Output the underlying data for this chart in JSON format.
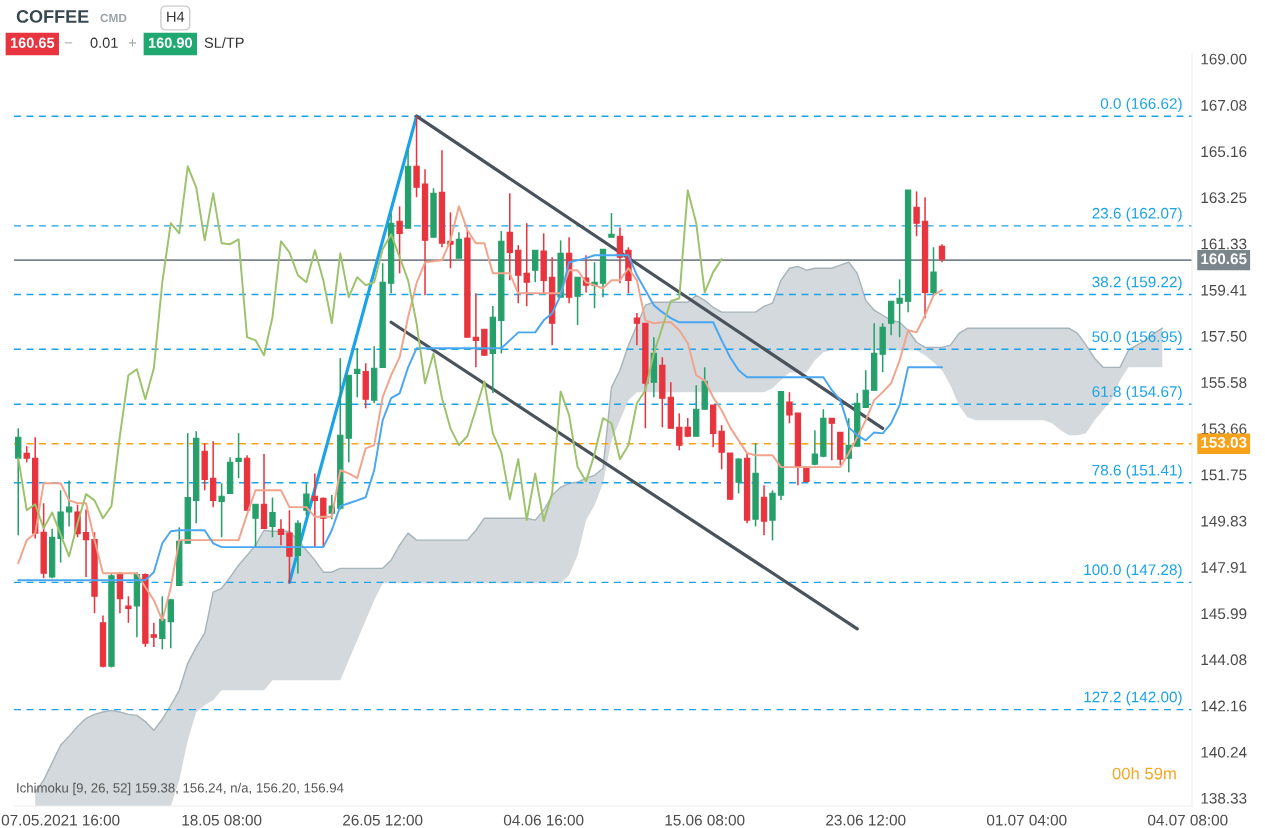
{
  "chart_data": {
    "type": "candlestick",
    "title": "COFFEE",
    "subtitle": "CMD",
    "categories": [
      null,
      null,
      null,
      null,
      null,
      "07.05.2021 16:00",
      null,
      null,
      null,
      null,
      null,
      null,
      null,
      null,
      null,
      null,
      null,
      null,
      null,
      null,
      null,
      null,
      null,
      null,
      "18.05 08:00",
      null,
      null,
      null,
      null,
      null,
      null,
      null,
      null,
      null,
      null,
      null,
      null,
      null,
      null,
      null,
      null,
      null,
      null,
      "26.05 12:00",
      null,
      null,
      null,
      null,
      null,
      null,
      null,
      null,
      null,
      null,
      null,
      null,
      null,
      null,
      null,
      null,
      null,
      null,
      "04.06 16:00",
      null,
      null,
      null,
      null,
      null,
      null,
      null,
      null,
      null,
      null,
      null,
      null,
      null,
      null,
      null,
      null,
      null,
      null,
      "15.06 08:00",
      null,
      null,
      null,
      null,
      null,
      null,
      null,
      null,
      null,
      null,
      null,
      null,
      null,
      null,
      null,
      null,
      null,
      null,
      "23.06 12:00",
      null,
      null,
      null,
      null,
      null,
      null,
      null,
      null,
      null,
      null,
      null,
      null,
      null,
      null,
      null,
      null,
      null,
      null,
      "01.07 04:00",
      null,
      null,
      null,
      null,
      null,
      null,
      null,
      null,
      null,
      null,
      null,
      null,
      null,
      null,
      null,
      null,
      null,
      null,
      "04.07 08:00"
    ],
    "ohlc": [
      [
        152.43,
        153.67,
        149.23,
        153.3
      ],
      [
        152.63,
        152.93,
        152.26,
        152.43
      ],
      [
        152.43,
        153.3,
        149.1,
        149.32
      ],
      [
        149.36,
        150.56,
        147.45,
        147.66
      ],
      [
        147.5,
        149.5,
        147.45,
        149.15
      ],
      [
        149.1,
        151.1,
        148.1,
        150.2
      ],
      [
        150.2,
        151.5,
        149.6,
        150.4
      ],
      [
        150.2,
        150.5,
        149.15,
        149.3
      ],
      [
        149.35,
        150.3,
        147.5,
        149.05
      ],
      [
        149.05,
        149.35,
        146.0,
        146.7
      ],
      [
        145.6,
        145.9,
        143.75,
        143.8
      ],
      [
        143.8,
        147.65,
        143.75,
        147.55
      ],
      [
        147.6,
        147.7,
        146.0,
        146.6
      ],
      [
        146.3,
        146.7,
        145.6,
        146.2
      ],
      [
        146.3,
        147.7,
        145.0,
        147.6
      ],
      [
        147.6,
        147.65,
        144.6,
        144.75
      ],
      [
        145.1,
        145.6,
        144.6,
        145.0
      ],
      [
        144.95,
        146.7,
        144.5,
        145.75
      ],
      [
        145.65,
        146.6,
        144.55,
        146.55
      ],
      [
        147.15,
        149.56,
        147.15,
        148.98
      ],
      [
        148.9,
        153.47,
        148.9,
        150.8
      ],
      [
        150.68,
        153.55,
        149.73,
        153.26
      ],
      [
        152.72,
        153.05,
        151.1,
        151.55
      ],
      [
        151.6,
        153.13,
        150.4,
        150.68
      ],
      [
        150.64,
        151.39,
        149.15,
        150.85
      ],
      [
        150.97,
        152.47,
        150.97,
        152.26
      ],
      [
        152.3,
        153.47,
        151.6,
        152.43
      ],
      [
        152.43,
        152.55,
        150.27,
        150.27
      ],
      [
        149.94,
        150.52,
        148.74,
        150.52
      ],
      [
        150.52,
        152.6,
        149.52,
        149.52
      ],
      [
        149.6,
        150.8,
        149.15,
        150.18
      ],
      [
        149.48,
        149.9,
        148.82,
        149.27
      ],
      [
        149.32,
        150.27,
        147.24,
        148.36
      ],
      [
        148.4,
        149.86,
        147.65,
        149.73
      ],
      [
        150.27,
        151.39,
        150.06,
        150.94
      ],
      [
        150.85,
        151.8,
        148.74,
        150.68
      ],
      [
        150.77,
        150.8,
        148.74,
        149.94
      ],
      [
        150.15,
        150.9,
        149.9,
        150.44
      ],
      [
        150.36,
        156.58,
        150.3,
        153.38
      ],
      [
        153.26,
        155.87,
        152.26,
        155.87
      ],
      [
        155.95,
        156.99,
        154.96,
        156.12
      ],
      [
        156.03,
        156.37,
        154.5,
        154.88
      ],
      [
        154.84,
        157.07,
        154.71,
        156.16
      ],
      [
        156.2,
        160.52,
        156.2,
        159.73
      ],
      [
        159.69,
        162.59,
        159.27,
        162.18
      ],
      [
        162.26,
        162.88,
        160.1,
        161.76
      ],
      [
        161.97,
        165.21,
        161.97,
        164.54
      ],
      [
        164.54,
        166.62,
        163.26,
        163.67
      ],
      [
        163.8,
        164.42,
        159.19,
        161.47
      ],
      [
        161.6,
        163.63,
        161.6,
        163.42
      ],
      [
        163.46,
        165.21,
        161.18,
        161.35
      ],
      [
        161.43,
        162.63,
        160.31,
        161.31
      ],
      [
        160.73,
        161.8,
        160.73,
        161.51
      ],
      [
        161.56,
        161.89,
        157.45,
        157.45
      ],
      [
        157.45,
        159.27,
        156.2,
        157.32
      ],
      [
        157.78,
        157.78,
        156.7,
        156.7
      ],
      [
        156.78,
        158.74,
        155.13,
        158.28
      ],
      [
        158.15,
        161.85,
        156.78,
        161.43
      ],
      [
        161.8,
        163.42,
        159.81,
        160.97
      ],
      [
        161.06,
        161.27,
        158.86,
        160.02
      ],
      [
        160.1,
        162.18,
        158.74,
        159.73
      ],
      [
        160.23,
        161.06,
        159.73,
        161.06
      ],
      [
        161.02,
        161.76,
        159.27,
        159.81
      ],
      [
        159.94,
        160.77,
        157.12,
        158.03
      ],
      [
        159.11,
        161.47,
        159.11,
        160.93
      ],
      [
        160.93,
        161.6,
        158.86,
        159.11
      ],
      [
        159.15,
        159.94,
        157.95,
        159.94
      ],
      [
        159.9,
        160.85,
        159.3,
        159.61
      ],
      [
        159.61,
        160.56,
        158.65,
        159.73
      ],
      [
        159.69,
        161.1,
        159.11,
        161.1
      ],
      [
        161.6,
        162.6,
        161.6,
        161.72
      ],
      [
        161.64,
        162.0,
        159.69,
        160.77
      ],
      [
        161.06,
        161.18,
        159.27,
        159.81
      ],
      [
        158.24,
        158.45,
        157.12,
        158.03
      ],
      [
        158.03,
        158.03,
        153.67,
        155.54
      ],
      [
        155.58,
        157.45,
        154.96,
        156.78
      ],
      [
        156.28,
        156.62,
        153.71,
        154.92
      ],
      [
        154.96,
        155.58,
        153.67,
        153.67
      ],
      [
        153.71,
        154.29,
        152.76,
        152.97
      ],
      [
        153.71,
        154.1,
        153.3,
        153.34
      ],
      [
        153.34,
        155.46,
        153.34,
        154.46
      ],
      [
        154.46,
        156.2,
        154.46,
        155.62
      ],
      [
        154.63,
        154.63,
        152.88,
        153.46
      ],
      [
        153.55,
        153.8,
        151.97,
        152.68
      ],
      [
        152.64,
        152.64,
        150.7,
        150.73
      ],
      [
        151.43,
        152.43,
        150.97,
        152.39
      ],
      [
        152.43,
        152.6,
        149.73,
        149.86
      ],
      [
        149.9,
        153.05,
        149.6,
        151.8
      ],
      [
        150.81,
        151.31,
        149.23,
        149.82
      ],
      [
        149.86,
        151.1,
        149.02,
        150.97
      ],
      [
        150.9,
        155.2,
        150.7,
        155.2
      ],
      [
        154.76,
        155.17,
        153.88,
        154.22
      ],
      [
        154.3,
        154.3,
        151.31,
        152.06
      ],
      [
        152.06,
        152.06,
        151.43,
        151.47
      ],
      [
        152.18,
        153.59,
        152.14,
        152.6
      ],
      [
        152.51,
        154.46,
        152.47,
        154.09
      ],
      [
        154.09,
        154.09,
        152.35,
        153.88
      ],
      [
        153.5,
        153.5,
        152.14,
        152.39
      ],
      [
        152.43,
        154.09,
        151.85,
        152.97
      ],
      [
        152.93,
        155.13,
        152.93,
        154.71
      ],
      [
        154.54,
        156.08,
        154.54,
        155.25
      ],
      [
        155.25,
        158.03,
        155.25,
        156.78
      ],
      [
        156.74,
        158.03,
        156.0,
        157.86
      ],
      [
        158.03,
        158.94,
        157.53,
        158.94
      ],
      [
        158.86,
        159.85,
        157.45,
        159.06
      ],
      [
        158.94,
        163.55,
        158.49,
        163.55
      ],
      [
        162.84,
        163.5,
        161.64,
        162.18
      ],
      [
        162.26,
        163.26,
        158.24,
        159.31
      ],
      [
        159.31,
        161.18,
        159.15,
        160.15
      ],
      [
        161.22,
        161.31,
        160.56,
        160.69
      ],
      null,
      null,
      null,
      null,
      null,
      null,
      null,
      null,
      null,
      null,
      null,
      null,
      null,
      null,
      null,
      null,
      null,
      null,
      null,
      null,
      null,
      null,
      null,
      null,
      null,
      null,
      null,
      null,
      null
    ],
    "colors": [
      "#26a06b",
      "#e8343e",
      "#e8343e",
      "#e8343e",
      "#26a06b",
      "#26a06b",
      "#26a06b",
      "#e8343e",
      "#e8343e",
      "#e8343e",
      "#e8343e",
      "#26a06b",
      "#e8343e",
      "#e8343e",
      "#26a06b",
      "#e8343e",
      "#e8343e",
      "#26a06b",
      "#26a06b",
      "#26a06b",
      "#26a06b",
      "#26a06b",
      "#e8343e",
      "#e8343e",
      "#26a06b",
      "#26a06b",
      "#26a06b",
      "#e8343e",
      "#26a06b",
      "#e8343e",
      "#26a06b",
      "#e8343e",
      "#e8343e",
      "#26a06b",
      "#26a06b",
      "#e8343e",
      "#e8343e",
      "#26a06b",
      "#26a06b",
      "#26a06b",
      "#26a06b",
      "#e8343e",
      "#26a06b",
      "#26a06b",
      "#26a06b",
      "#e8343e",
      "#26a06b",
      "#e8343e",
      "#e8343e",
      "#26a06b",
      "#e8343e",
      "#e8343e",
      "#26a06b",
      "#e8343e",
      "#e8343e",
      "#e8343e",
      "#26a06b",
      "#26a06b",
      "#e8343e",
      "#e8343e",
      "#e8343e",
      "#26a06b",
      "#e8343e",
      "#e8343e",
      "#26a06b",
      "#e8343e",
      "#26a06b",
      "#e8343e",
      "#26a06b",
      "#26a06b",
      "#26a06b",
      "#e8343e",
      "#e8343e",
      "#e8343e",
      "#e8343e",
      "#26a06b",
      "#e8343e",
      "#e8343e",
      "#e8343e",
      "#e8343e",
      "#26a06b",
      "#26a06b",
      "#e8343e",
      "#e8343e",
      "#e8343e",
      "#26a06b",
      "#e8343e",
      "#26a06b",
      "#e8343e",
      "#26a06b",
      "#26a06b",
      "#e8343e",
      "#e8343e",
      "#e8343e",
      "#26a06b",
      "#26a06b",
      "#e8343e",
      "#e8343e",
      "#26a06b",
      "#26a06b",
      "#26a06b",
      "#26a06b",
      "#26a06b",
      "#26a06b",
      "#26a06b",
      "#26a06b",
      "#e8343e",
      "#e8343e",
      "#26a06b",
      "#e8343e",
      null,
      null,
      null,
      null,
      null,
      null,
      null,
      null,
      null,
      null,
      null,
      null,
      null,
      null,
      null,
      null,
      null,
      null,
      null,
      null,
      null,
      null,
      null,
      null,
      null,
      null,
      null,
      null,
      null
    ],
    "series": [
      {
        "type": "line",
        "color": "#a7b3ba",
        "values": [
          null,
          null,
          138.57,
          139.07,
          139.8,
          140.52,
          140.9,
          141.3,
          141.64,
          141.8,
          141.9,
          141.97,
          141.9,
          141.8,
          141.76,
          141.5,
          141.14,
          141.6,
          142.18,
          142.8,
          143.92,
          144.59,
          145.17,
          146.87,
          147.03,
          147.49,
          147.99,
          148.4,
          148.82,
          149.44,
          149.4,
          149.4,
          149.4,
          149.03,
          148.61,
          148.2,
          147.7,
          147.7,
          147.86,
          147.86,
          147.86,
          147.86,
          147.86,
          147.86,
          148.2,
          148.82,
          149.32,
          149.03,
          149.03,
          149.03,
          149.03,
          149.03,
          149.03,
          149.03,
          149.44,
          149.94,
          149.94,
          149.94,
          149.94,
          149.94,
          149.94,
          149.86,
          150.27,
          150.89,
          151.22,
          151.39,
          151.43,
          151.6,
          151.72,
          152.01,
          155.37,
          156.08,
          157.12,
          157.95,
          158.78,
          158.9,
          158.9,
          158.9,
          158.9,
          158.9,
          159.19,
          158.98,
          158.69,
          158.49,
          158.49,
          158.49,
          158.49,
          158.49,
          158.73,
          158.86,
          159.81,
          160.31,
          160.39,
          160.23,
          160.31,
          160.31,
          160.31,
          160.44,
          160.56,
          160.1,
          158.98,
          158.57,
          158.36,
          158.15,
          158.07,
          157.74,
          157.24,
          157.03,
          157.03,
          157.03,
          157.12,
          157.61,
          157.82,
          157.82,
          157.82,
          157.82,
          157.82,
          157.82,
          157.82,
          157.82,
          157.82,
          157.82,
          157.82,
          157.82,
          157.82,
          157.61,
          157.12,
          156.58,
          156.2,
          156.2,
          156.2,
          156.91,
          157.12,
          157.32,
          157.61,
          157.82,
          null,
          null,
          null
        ],
        "upper": [
          null,
          null,
          138.57,
          139.07,
          139.8,
          140.52,
          140.9,
          141.3,
          141.64,
          141.8,
          141.9,
          141.97,
          141.9,
          141.8,
          141.76,
          141.5,
          141.14,
          141.6,
          142.18,
          142.8,
          143.92,
          144.59,
          145.17,
          146.87,
          147.03,
          147.49,
          147.99,
          148.4,
          148.82,
          149.44,
          149.4,
          149.4,
          149.4,
          149.03,
          148.61,
          148.2,
          147.7,
          147.7,
          147.86,
          147.86,
          147.86,
          147.86,
          147.86,
          147.86,
          148.2,
          148.82,
          149.32,
          149.03,
          149.03,
          149.03,
          149.03,
          149.03,
          149.03,
          149.03,
          149.44,
          149.94,
          149.94,
          149.94,
          149.94,
          149.94,
          149.94,
          149.86,
          150.27,
          150.89,
          151.22,
          151.39,
          151.43,
          151.6,
          151.72,
          152.01,
          155.37,
          156.08,
          157.12,
          157.95,
          158.78,
          158.9,
          158.9,
          158.9,
          158.9,
          158.9,
          159.19,
          158.98,
          158.69,
          158.49,
          158.49,
          158.49,
          158.49,
          158.49,
          158.73,
          158.86,
          159.81,
          160.31,
          160.39,
          160.23,
          160.31,
          160.31,
          160.31,
          160.44,
          160.56,
          160.1,
          158.98,
          158.57,
          158.36,
          158.15,
          158.07,
          157.74,
          157.24,
          157.03,
          157.03,
          157.03,
          157.12,
          157.61,
          157.82,
          157.82,
          157.82,
          157.82,
          157.82,
          157.82,
          157.82,
          157.82,
          157.82,
          157.82,
          157.82,
          157.82,
          157.82,
          157.61,
          157.12,
          156.58,
          156.2,
          156.2,
          156.2,
          156.91,
          157.12,
          157.32,
          157.61,
          157.82,
          null,
          null,
          null
        ],
        "lower": [
          null,
          null,
          138.0,
          138.0,
          138.0,
          138.0,
          138.0,
          138.0,
          138.0,
          138.0,
          138.0,
          138.0,
          138.0,
          138.0,
          138.0,
          138.0,
          138.0,
          138.0,
          138.0,
          139.07,
          140.73,
          141.89,
          142.18,
          142.39,
          142.8,
          142.8,
          142.8,
          142.8,
          142.8,
          142.8,
          143.22,
          143.22,
          143.22,
          143.22,
          143.22,
          143.22,
          143.22,
          143.22,
          143.22,
          144.05,
          144.88,
          145.71,
          146.54,
          147.24,
          147.24,
          147.24,
          147.24,
          147.24,
          147.24,
          147.24,
          147.24,
          147.24,
          147.24,
          147.24,
          147.24,
          147.24,
          147.24,
          147.24,
          147.24,
          147.24,
          147.24,
          147.24,
          147.24,
          147.24,
          147.24,
          147.57,
          148.4,
          149.86,
          150.48,
          151.39,
          153.17,
          154.0,
          154.83,
          155.17,
          155.17,
          155.17,
          155.17,
          155.17,
          155.17,
          155.17,
          155.17,
          155.17,
          155.17,
          155.17,
          155.17,
          155.17,
          155.17,
          155.17,
          155.17,
          155.33,
          155.66,
          155.99,
          155.99,
          155.99,
          156.49,
          156.83,
          156.91,
          156.91,
          156.91,
          156.91,
          156.91,
          156.91,
          156.91,
          156.91,
          156.91,
          156.91,
          156.91,
          156.7,
          156.41,
          156.08,
          155.45,
          154.62,
          154.13,
          154.0,
          154.0,
          154.0,
          154.0,
          154.0,
          154.0,
          154.0,
          154.0,
          154.0,
          153.88,
          153.59,
          153.38,
          153.38,
          153.47,
          154.0,
          154.42,
          154.83,
          155.66,
          156.2,
          156.2,
          156.2,
          156.2,
          156.2,
          null,
          null,
          null
        ]
      },
      {
        "type": "line",
        "color": "#f2a38c",
        "values": [
          148.07,
          149.03,
          149.32,
          151.39,
          151.39,
          151.39,
          150.68,
          150.56,
          150.56,
          149.03,
          147.66,
          147.66,
          147.66,
          147.66,
          147.66,
          147.08,
          146.54,
          145.7,
          147.08,
          149.03,
          149.03,
          149.03,
          149.03,
          149.03,
          149.03,
          149.03,
          149.03,
          150.1,
          151.1,
          151.1,
          151.1,
          151.1,
          150.4,
          150.4,
          150.4,
          150.0,
          150.0,
          150.0,
          151.93,
          151.8,
          151.6,
          152.84,
          152.97,
          154.96,
          155.87,
          156.62,
          158.28,
          159.69,
          160.56,
          160.6,
          160.64,
          161.47,
          162.88,
          161.89,
          161.35,
          161.35,
          160.1,
          160.1,
          160.1,
          159.27,
          159.27,
          159.27,
          159.27,
          159.27,
          159.27,
          160.23,
          160.23,
          159.73,
          159.61,
          159.48,
          159.81,
          159.81,
          160.31,
          159.81,
          158.15,
          158.03,
          158.07,
          158.07,
          157.74,
          157.2,
          155.87,
          155.66,
          154.96,
          154.42,
          153.71,
          153.17,
          152.64,
          152.55,
          152.55,
          152.55,
          152.06,
          152.06,
          152.06,
          152.06,
          152.06,
          152.06,
          152.06,
          152.06,
          152.64,
          153.3,
          154.0,
          154.84,
          155.17,
          155.54,
          156.49,
          157.74,
          157.65,
          158.36,
          159.19,
          159.4,
          null,
          null,
          null,
          null,
          null,
          null,
          null,
          null,
          null,
          null,
          null,
          null,
          null,
          null,
          null,
          null,
          null,
          null,
          null,
          null,
          null,
          null,
          null,
          null,
          null,
          null,
          null,
          null,
          null
        ]
      },
      {
        "type": "line",
        "color": "#4aa6f2",
        "values": [
          147.37,
          147.37,
          147.37,
          147.37,
          147.37,
          147.37,
          147.37,
          147.37,
          147.37,
          147.37,
          147.37,
          147.37,
          147.37,
          147.37,
          147.37,
          147.37,
          147.7,
          148.9,
          149.4,
          149.44,
          149.44,
          149.44,
          149.44,
          148.9,
          148.74,
          148.74,
          148.74,
          148.74,
          148.74,
          148.74,
          148.74,
          148.74,
          148.74,
          148.74,
          148.74,
          148.74,
          148.74,
          149.44,
          150.44,
          150.56,
          150.68,
          150.81,
          151.93,
          154.0,
          154.92,
          155.12,
          156.2,
          156.99,
          156.99,
          156.99,
          156.99,
          156.99,
          156.99,
          156.99,
          156.99,
          156.99,
          156.99,
          156.99,
          157.32,
          157.65,
          157.65,
          157.65,
          158.15,
          158.44,
          159.19,
          160.56,
          160.64,
          160.73,
          160.85,
          160.85,
          160.85,
          160.85,
          160.85,
          160.02,
          159.4,
          158.78,
          158.49,
          158.24,
          158.07,
          158.07,
          158.07,
          158.07,
          158.07,
          157.32,
          156.62,
          156.08,
          155.79,
          155.79,
          155.79,
          155.79,
          155.79,
          155.79,
          155.79,
          155.79,
          155.79,
          155.79,
          155.25,
          154.84,
          153.71,
          153.38,
          153.17,
          153.5,
          153.46,
          153.88,
          154.63,
          156.2,
          156.2,
          156.2,
          156.2,
          156.2,
          null,
          null,
          null,
          null,
          null,
          null,
          null,
          null,
          null,
          null,
          null,
          null,
          null,
          null,
          null,
          null,
          null,
          null,
          null,
          null,
          null,
          null,
          null,
          null,
          null,
          null,
          null,
          null,
          null
        ]
      },
      {
        "type": "line",
        "color": "#9cc26c",
        "values": [
          152.43,
          150.27,
          150.52,
          149.52,
          150.18,
          149.27,
          148.36,
          149.73,
          150.94,
          150.68,
          149.94,
          150.44,
          153.38,
          155.87,
          156.12,
          154.88,
          156.16,
          159.73,
          162.18,
          161.76,
          164.54,
          163.67,
          161.47,
          163.42,
          161.35,
          161.31,
          161.51,
          157.45,
          157.32,
          156.7,
          158.28,
          161.43,
          160.97,
          160.02,
          159.73,
          161.06,
          159.81,
          158.03,
          160.93,
          159.11,
          159.94,
          159.61,
          159.73,
          161.1,
          161.72,
          160.77,
          159.81,
          158.03,
          155.54,
          156.78,
          154.92,
          153.67,
          152.97,
          153.34,
          154.46,
          155.62,
          153.46,
          152.68,
          150.73,
          152.39,
          149.86,
          151.8,
          149.82,
          150.97,
          155.2,
          154.22,
          152.06,
          151.47,
          152.6,
          154.09,
          153.88,
          152.39,
          152.97,
          154.71,
          155.25,
          156.78,
          157.86,
          158.94,
          159.06,
          163.55,
          162.18,
          159.31,
          160.15,
          160.69,
          null,
          null,
          null,
          null,
          null,
          null,
          null,
          null,
          null,
          null,
          null,
          null,
          null,
          null,
          null,
          null,
          null,
          null,
          null,
          null,
          null,
          null,
          null,
          null,
          null,
          null,
          null,
          null,
          null,
          null,
          null,
          null,
          null,
          null,
          null,
          null,
          null,
          null,
          null,
          null,
          null,
          null,
          null,
          null,
          null,
          null,
          null,
          null,
          null,
          null,
          null,
          null,
          null,
          null,
          null
        ]
      },
      {
        "type": "line",
        "color": "#1aa3e8",
        "values": [
          null,
          null,
          null,
          null,
          null,
          null,
          null,
          null,
          null,
          null,
          null,
          null,
          null,
          null,
          null,
          null,
          null,
          null,
          null,
          null,
          null,
          null,
          null,
          null,
          null,
          null,
          null,
          null,
          null,
          null,
          null,
          null,
          147.28,
          null,
          null,
          null,
          null,
          null,
          null,
          null,
          null,
          null,
          null,
          null,
          null,
          null,
          null,
          166.62,
          null,
          null,
          null,
          null,
          null,
          null,
          null,
          null,
          null,
          null,
          null,
          null,
          null,
          null,
          null,
          null,
          null,
          null,
          null,
          null,
          null,
          null,
          null,
          null,
          null,
          null,
          null,
          null,
          null,
          null,
          null,
          null,
          null,
          null,
          null,
          null,
          null,
          null,
          null,
          null,
          null,
          null,
          null,
          null,
          null,
          null,
          null,
          null,
          null,
          null,
          null,
          null,
          null,
          null,
          null,
          null,
          null,
          null,
          null,
          null,
          null,
          null,
          null,
          null,
          null,
          null,
          null,
          null,
          null,
          null,
          null,
          null,
          null,
          null,
          null,
          null,
          null,
          null,
          null,
          null,
          null,
          null,
          null,
          null,
          null,
          null,
          null,
          null,
          null,
          null,
          null
        ]
      },
      {
        "type": "line",
        "color": "#4a535c",
        "values": [
          null,
          null,
          null,
          null,
          null,
          null,
          null,
          null,
          null,
          null,
          null,
          null,
          null,
          null,
          null,
          null,
          null,
          null,
          null,
          null,
          null,
          null,
          null,
          null,
          null,
          null,
          null,
          null,
          null,
          null,
          null,
          null,
          null,
          null,
          null,
          null,
          null,
          null,
          null,
          null,
          null,
          null,
          null,
          null,
          null,
          null,
          null,
          166.62,
          null,
          null,
          null,
          null,
          null,
          null,
          null,
          null,
          null,
          null,
          null,
          null,
          null,
          null,
          null,
          null,
          null,
          null,
          null,
          null,
          null,
          null,
          null,
          null,
          null,
          null,
          null,
          null,
          null,
          null,
          null,
          null,
          null,
          null,
          null,
          null,
          null,
          null,
          null,
          null,
          null,
          null,
          null,
          null,
          null,
          null,
          null,
          null,
          null,
          null,
          null,
          null,
          null,
          null,
          153.67,
          null,
          null,
          null,
          null,
          null,
          null,
          null,
          null,
          null,
          null,
          null,
          null,
          null,
          null,
          null,
          null,
          null,
          null,
          null,
          null,
          null,
          null,
          null,
          null,
          null,
          null,
          null,
          null,
          null,
          null,
          null,
          null,
          null,
          null,
          null,
          null
        ]
      },
      {
        "type": "line",
        "color": "#4a535c",
        "values": [
          null,
          null,
          null,
          null,
          null,
          null,
          null,
          null,
          null,
          null,
          null,
          null,
          null,
          null,
          null,
          null,
          null,
          null,
          null,
          null,
          null,
          null,
          null,
          null,
          null,
          null,
          null,
          null,
          null,
          null,
          null,
          null,
          null,
          null,
          null,
          null,
          null,
          null,
          null,
          null,
          null,
          null,
          null,
          null,
          158.07,
          null,
          null,
          null,
          null,
          null,
          null,
          null,
          null,
          null,
          null,
          null,
          null,
          null,
          null,
          null,
          null,
          null,
          null,
          null,
          null,
          null,
          null,
          null,
          null,
          null,
          null,
          null,
          null,
          null,
          null,
          null,
          null,
          null,
          null,
          null,
          null,
          null,
          null,
          null,
          null,
          null,
          null,
          null,
          null,
          null,
          null,
          null,
          null,
          null,
          null,
          null,
          null,
          null,
          null,
          145.35,
          null,
          null,
          null,
          null,
          null,
          null,
          null,
          null,
          null,
          null,
          null,
          null,
          null,
          null,
          null,
          null,
          null,
          null,
          null,
          null,
          null,
          null,
          null,
          null,
          null,
          null,
          null,
          null,
          null,
          null,
          null,
          null,
          null,
          null,
          null,
          null,
          null,
          null,
          null
        ]
      }
    ],
    "ylim": [
      138.0,
      169.2
    ],
    "yticks": [
      138.33,
      140.24,
      142.16,
      144.08,
      145.99,
      147.91,
      149.83,
      151.75,
      153.66,
      155.58,
      {
        "value": 157.5,
        "label": "157.50"
      },
      159.41,
      161.33,
      163.25,
      165.16,
      167.08,
      {
        "value": 169,
        "label": "169.00"
      }
    ],
    "ref_lines": [
      {
        "axis": "y",
        "value": 166.62,
        "label": "0.0 (166.62)",
        "color": "#1aa3e8",
        "line_style": "dashed"
      },
      {
        "axis": "y",
        "value": 162.07,
        "label": "23.6 (162.07)",
        "color": "#1aa3e8",
        "line_style": "dashed"
      },
      {
        "axis": "y",
        "value": 159.22,
        "label": "38.2 (159.22)",
        "color": "#1aa3e8",
        "line_style": "dashed"
      },
      {
        "axis": "y",
        "value": 156.95,
        "label": "50.0 (156.95)",
        "color": "#1aa3e8",
        "line_style": "dashed"
      },
      {
        "axis": "y",
        "value": 154.67,
        "label": "61.8 (154.67)",
        "color": "#1aa3e8",
        "line_style": "dashed"
      },
      {
        "axis": "y",
        "value": 151.41,
        "label": "78.6 (151.41)",
        "color": "#1aa3e8",
        "line_style": "dashed"
      },
      {
        "axis": "y",
        "value": 147.28,
        "label": "100.0 (147.28)",
        "color": "#1aa3e8",
        "line_style": "dashed"
      },
      {
        "axis": "y",
        "value": 142.0,
        "label": "127.2 (142.00)",
        "color": "#1aa3e8",
        "line_style": "dashed"
      },
      {
        "axis": "y",
        "value": 160.65,
        "color": "#7b868c",
        "line_style": "solid"
      },
      {
        "axis": "y",
        "value": 153.03,
        "color": "#f7a21b",
        "line_style": "dashed"
      }
    ],
    "annotations": [
      "160.65",
      "−",
      "0.01",
      "+",
      "160.90",
      "SL/TP",
      "H4",
      "Ichimoku [9, 26, 52] 159.38, 156.24, n/a, 156.20, 156.94",
      "00h 59m",
      "160.65",
      "153.03"
    ],
    "grid": false
  }
}
